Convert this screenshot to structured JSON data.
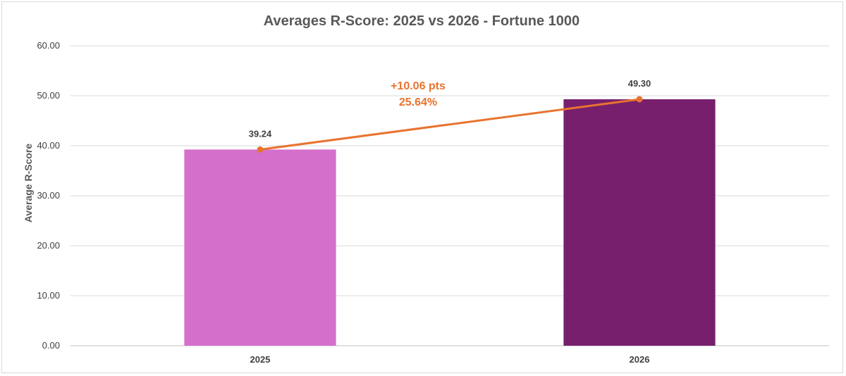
{
  "chart_data": {
    "type": "bar",
    "title": "Averages R-Score: 2025 vs 2026 - Fortune 1000",
    "xlabel": "",
    "ylabel": "Average R-Score",
    "ylim": [
      0,
      60
    ],
    "yticks": [
      "0.00",
      "10.00",
      "20.00",
      "30.00",
      "40.00",
      "50.00",
      "60.00"
    ],
    "categories": [
      "2025",
      "2026"
    ],
    "values": [
      39.24,
      49.3
    ],
    "data_labels": [
      "39.24",
      "49.30"
    ],
    "bar_colors": [
      "#d56fcc",
      "#771f6c"
    ],
    "trend_line": {
      "color": "#e8732f",
      "values": [
        39.24,
        49.3
      ]
    },
    "annotation": {
      "line1": "+10.06 pts",
      "line2": "25.64%",
      "color": "#e8732f"
    },
    "grid": true,
    "legend": "none"
  }
}
